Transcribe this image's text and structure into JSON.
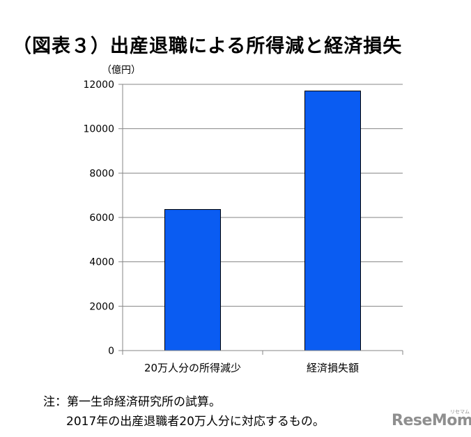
{
  "title": "（図表３）出産退職による所得減と経済損失",
  "unit_label": "（億円）",
  "notes": {
    "line1": "注：第一生命経済研究所の試算。",
    "line2": "2017年の出産退職者20万人分に対応するもの。"
  },
  "logo": {
    "text": "ReseMom",
    "sub": "リセマム"
  },
  "colors": {
    "bar": "#0a5cf2",
    "bar_border": "#000000",
    "grid": "#868686",
    "axis": "#868686"
  },
  "chart_data": {
    "type": "bar",
    "title": "（図表３）出産退職による所得減と経済損失",
    "ylabel": "（億円）",
    "xlabel": "",
    "categories": [
      "20万人分の所得減少",
      "経済損失額"
    ],
    "series": [
      {
        "values": [
          6360,
          11700
        ]
      }
    ],
    "ylim": [
      0,
      12000
    ],
    "yticks": [
      0,
      2000,
      4000,
      6000,
      8000,
      10000,
      12000
    ],
    "grid": true,
    "legend": "none"
  }
}
